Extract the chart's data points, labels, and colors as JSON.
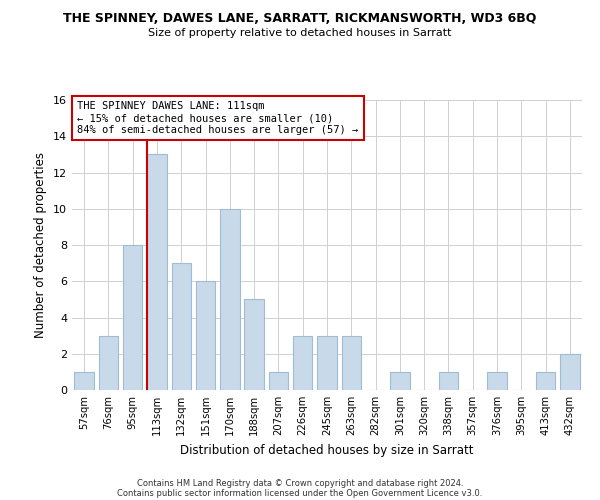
{
  "title": "THE SPINNEY, DAWES LANE, SARRATT, RICKMANSWORTH, WD3 6BQ",
  "subtitle": "Size of property relative to detached houses in Sarratt",
  "xlabel": "Distribution of detached houses by size in Sarratt",
  "ylabel": "Number of detached properties",
  "bar_color": "#c8d9ea",
  "bar_edge_color": "#a0bcd0",
  "categories": [
    "57sqm",
    "76sqm",
    "95sqm",
    "113sqm",
    "132sqm",
    "151sqm",
    "170sqm",
    "188sqm",
    "207sqm",
    "226sqm",
    "245sqm",
    "263sqm",
    "282sqm",
    "301sqm",
    "320sqm",
    "338sqm",
    "357sqm",
    "376sqm",
    "395sqm",
    "413sqm",
    "432sqm"
  ],
  "values": [
    1,
    3,
    8,
    13,
    7,
    6,
    10,
    5,
    1,
    3,
    3,
    3,
    0,
    1,
    0,
    1,
    0,
    1,
    0,
    1,
    2
  ],
  "ylim": [
    0,
    16
  ],
  "yticks": [
    0,
    2,
    4,
    6,
    8,
    10,
    12,
    14,
    16
  ],
  "property_line_index": 3,
  "annotation_title": "THE SPINNEY DAWES LANE: 111sqm",
  "annotation_line1": "← 15% of detached houses are smaller (10)",
  "annotation_line2": "84% of semi-detached houses are larger (57) →",
  "annotation_box_color": "#ffffff",
  "annotation_box_edge_color": "#cc0000",
  "property_line_color": "#cc0000",
  "footer1": "Contains HM Land Registry data © Crown copyright and database right 2024.",
  "footer2": "Contains public sector information licensed under the Open Government Licence v3.0.",
  "background_color": "#ffffff",
  "grid_color": "#d0d0d0"
}
